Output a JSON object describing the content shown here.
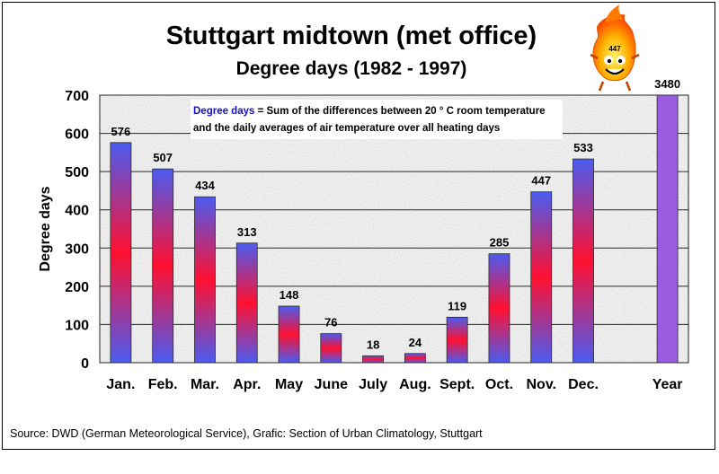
{
  "chart_data": {
    "type": "bar",
    "title": "Stuttgart midtown (met office)",
    "subtitle": "Degree days (1982 - 1997)",
    "ylabel": "Degree days",
    "xlabel": "",
    "ylim": [
      0,
      700
    ],
    "yticks": [
      0,
      100,
      200,
      300,
      400,
      500,
      600,
      700
    ],
    "grid": true,
    "categories": [
      "Jan.",
      "Feb.",
      "Mar.",
      "Apr.",
      "May",
      "June",
      "July",
      "Aug.",
      "Sept.",
      "Oct.",
      "Nov.",
      "Dec."
    ],
    "values": [
      576,
      507,
      434,
      313,
      148,
      76,
      18,
      24,
      119,
      285,
      447,
      533
    ],
    "total": {
      "label": "Year",
      "value": 3480
    },
    "annotation": {
      "key": "Degree days",
      "line1": " = Sum of the differences between 20 ° C room temperature",
      "line2": "and the daily averages of air temperature over all heating days"
    },
    "source": "Source: DWD (German Meteorological Service), Grafic: Section of Urban Climatology, Stuttgart",
    "colors": {
      "bar_edge": "#4a5cf0",
      "bar_middle": "#ff1030",
      "year_bar": "#9b5ce0",
      "plot_background": "#dcdcdc",
      "annotation_key": "#1010c0"
    },
    "mascot": {
      "icon": "flame-mascot-icon",
      "number": "447"
    }
  }
}
